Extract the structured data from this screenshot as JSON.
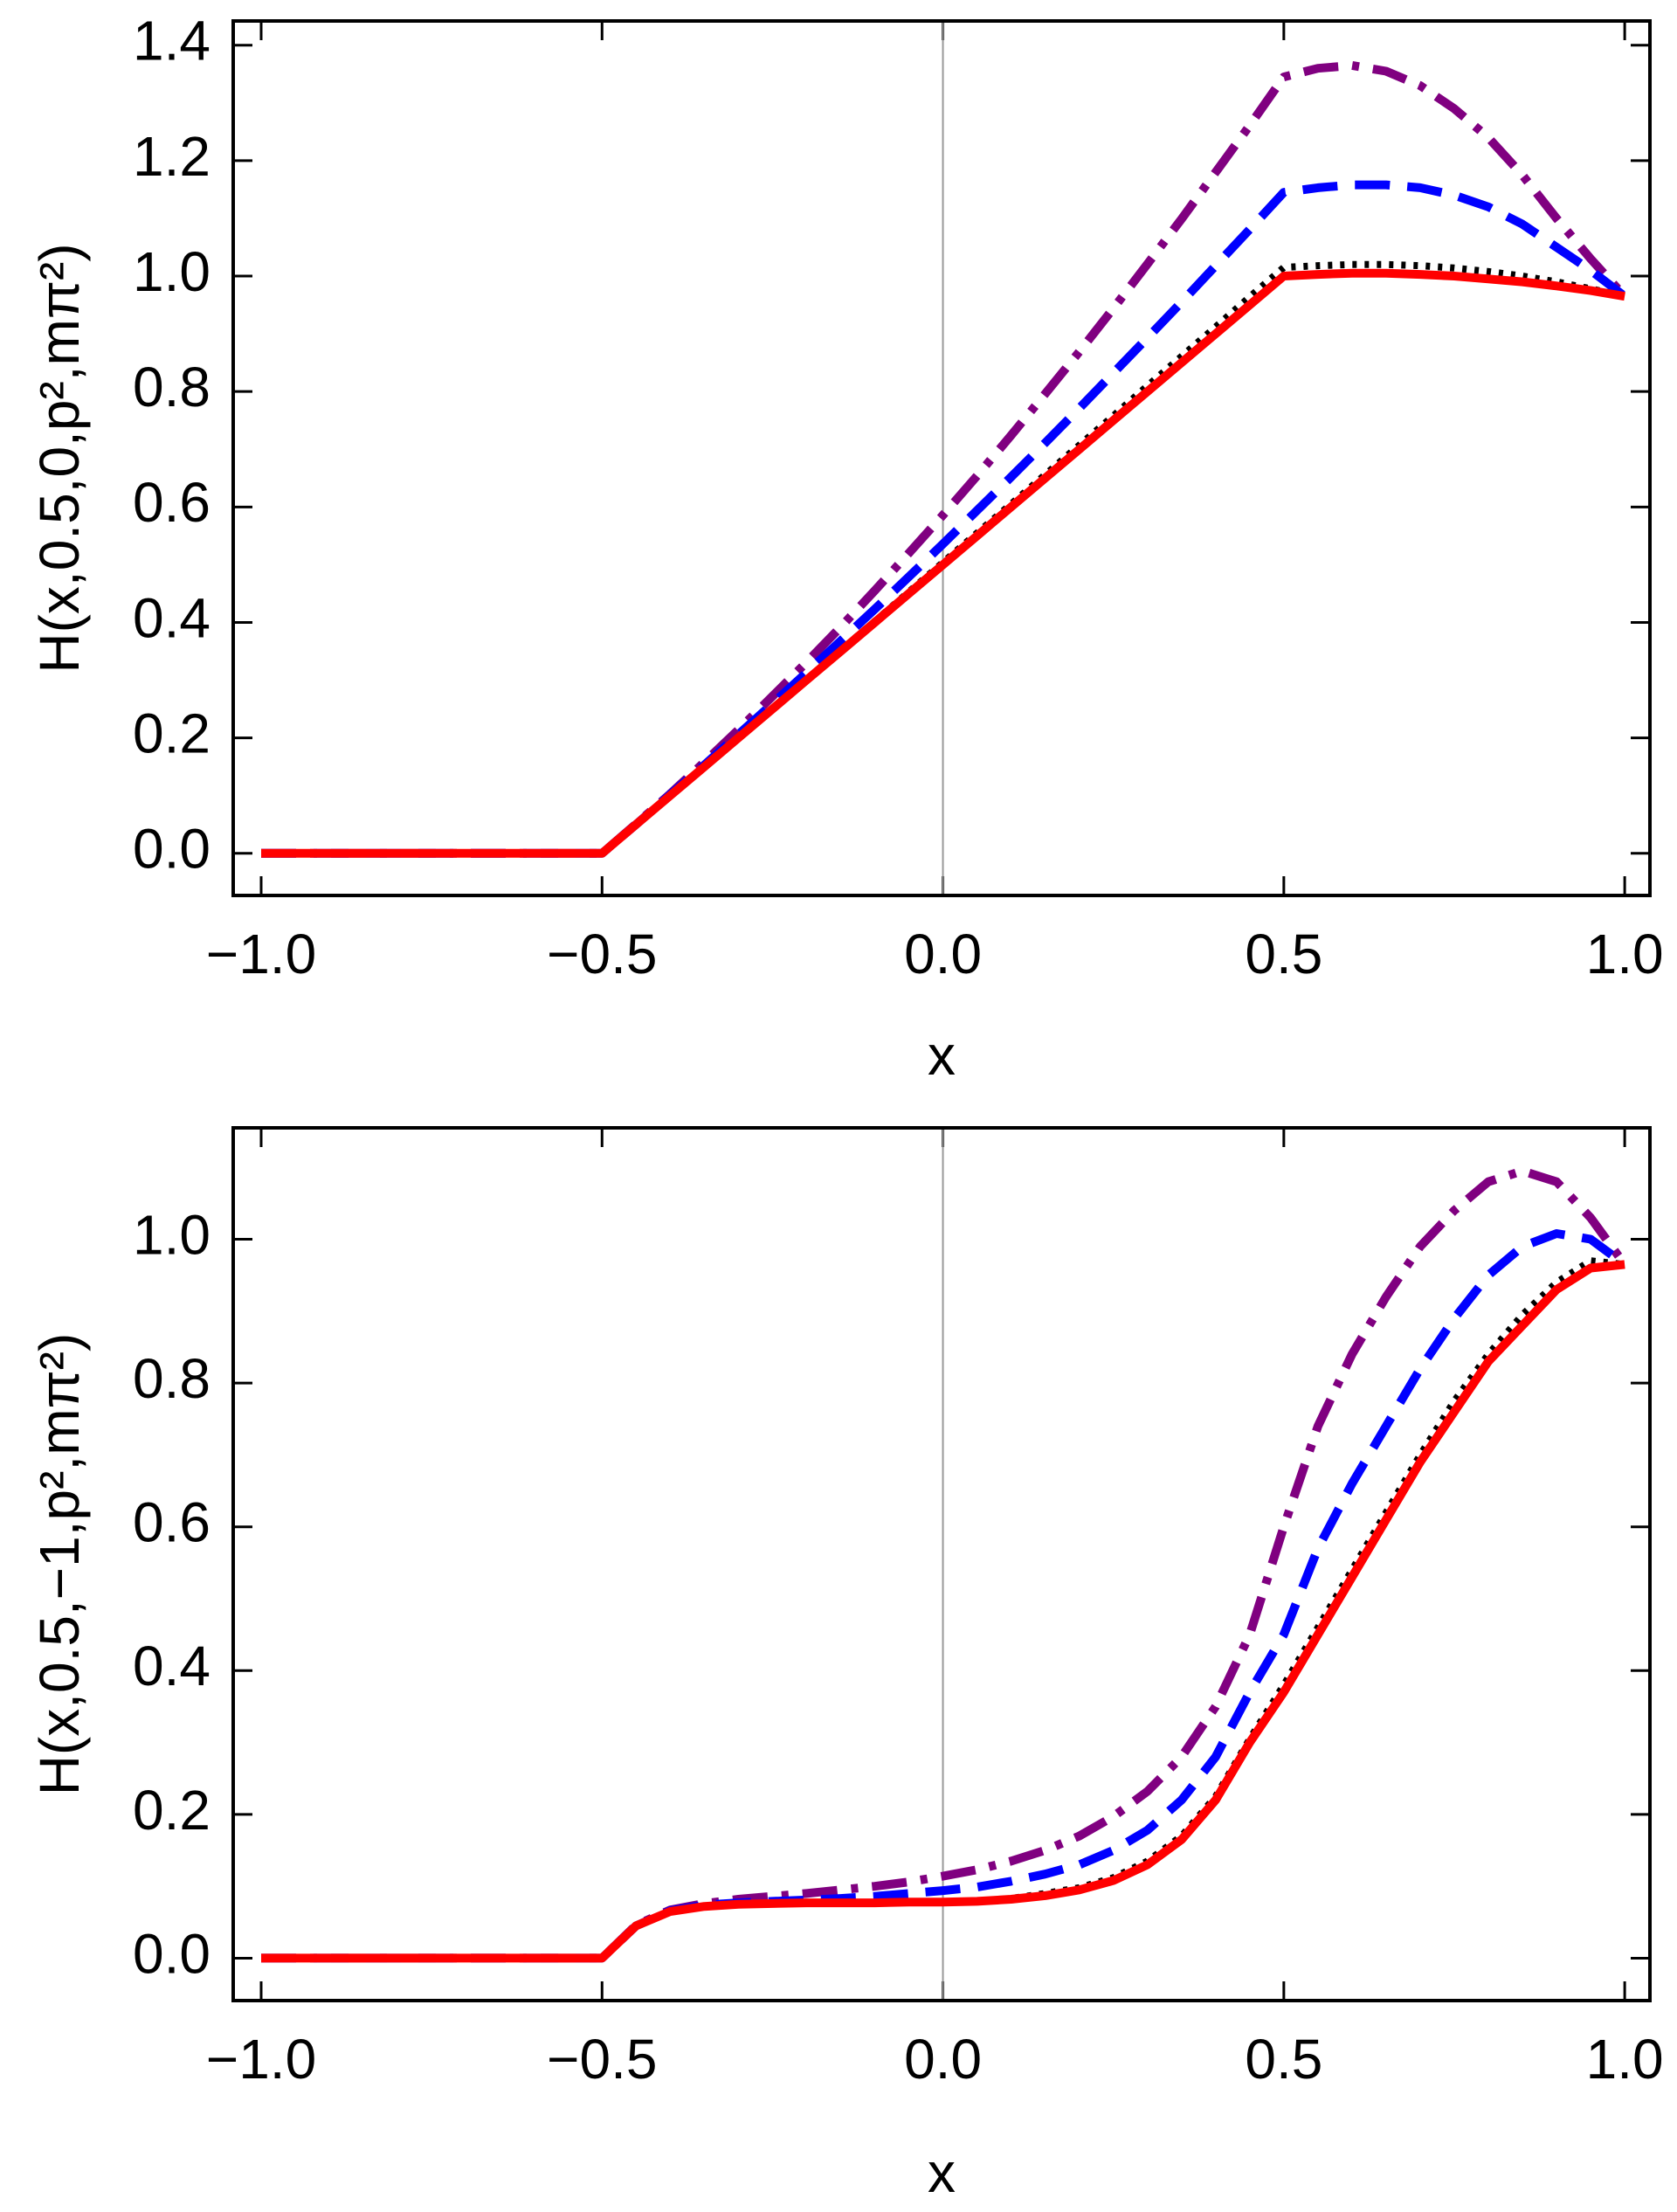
{
  "chart_data": [
    {
      "type": "line",
      "xlabel": "x",
      "ylabel": "H(x,0.5,0,p²,mπ²)",
      "xlim": [
        -1.041,
        1.037
      ],
      "ylim": [
        -0.073,
        1.442
      ],
      "xticks": [
        {
          "value": -1,
          "label": "−1.0"
        },
        {
          "value": -0.5,
          "label": "−0.5"
        },
        {
          "value": 0,
          "label": "0.0"
        },
        0.5,
        {
          "value": 1,
          "label": "1.0"
        }
      ],
      "yticks": [
        {
          "value": 0,
          "label": "0.0"
        },
        0.2,
        0.4,
        0.6,
        0.8,
        {
          "value": 1,
          "label": "1.0"
        },
        1.2,
        1.4
      ],
      "x": [
        -1,
        -0.95,
        -0.9,
        -0.85,
        -0.8,
        -0.75,
        -0.7,
        -0.65,
        -0.6,
        -0.55,
        -0.5,
        -0.45,
        -0.4,
        -0.35,
        -0.3,
        -0.25,
        -0.2,
        -0.15,
        -0.1,
        -0.05,
        0,
        0.05,
        0.1,
        0.15,
        0.2,
        0.25,
        0.3,
        0.35,
        0.4,
        0.45,
        0.5,
        0.55,
        0.6,
        0.65,
        0.7,
        0.75,
        0.8,
        0.85,
        0.9,
        0.95,
        1
      ],
      "series": [
        {
          "color": "#800080",
          "style": "dashdot",
          "values": [
            0,
            0,
            0,
            0,
            0,
            0,
            0,
            0,
            0,
            0,
            0,
            0.051,
            0.103,
            0.158,
            0.214,
            0.272,
            0.331,
            0.392,
            0.455,
            0.52,
            0.586,
            0.654,
            0.724,
            0.796,
            0.869,
            0.944,
            1.021,
            1.099,
            1.18,
            1.261,
            1.345,
            1.36,
            1.365,
            1.355,
            1.33,
            1.29,
            1.24,
            1.175,
            1.1,
            1.03,
            0.965
          ]
        },
        {
          "color": "#0000ff",
          "style": "dashed",
          "values": [
            0,
            0,
            0,
            0,
            0,
            0,
            0,
            0,
            0,
            0,
            0,
            0.05,
            0.102,
            0.153,
            0.206,
            0.259,
            0.313,
            0.368,
            0.423,
            0.479,
            0.536,
            0.594,
            0.652,
            0.711,
            0.771,
            0.832,
            0.893,
            0.955,
            1.018,
            1.081,
            1.145,
            1.153,
            1.158,
            1.158,
            1.153,
            1.14,
            1.12,
            1.09,
            1.05,
            1.01,
            0.965
          ]
        },
        {
          "color": "#000000",
          "style": "dotted",
          "values": [
            0,
            0,
            0,
            0,
            0,
            0,
            0,
            0,
            0,
            0,
            0,
            0.05,
            0.1,
            0.15,
            0.201,
            0.251,
            0.301,
            0.352,
            0.402,
            0.453,
            0.504,
            0.555,
            0.605,
            0.656,
            0.707,
            0.758,
            0.81,
            0.861,
            0.912,
            0.964,
            1.015,
            1.018,
            1.02,
            1.02,
            1.018,
            1.014,
            1.008,
            1,
            0.99,
            0.978,
            0.965
          ]
        },
        {
          "color": "#ff0000",
          "style": "solid",
          "values": [
            0,
            0,
            0,
            0,
            0,
            0,
            0,
            0,
            0,
            0,
            0,
            0.05,
            0.1,
            0.15,
            0.2,
            0.25,
            0.3,
            0.35,
            0.4,
            0.45,
            0.5,
            0.55,
            0.6,
            0.65,
            0.7,
            0.75,
            0.8,
            0.85,
            0.9,
            0.95,
            1,
            1.003,
            1.005,
            1.005,
            1.003,
            1,
            0.995,
            0.99,
            0.983,
            0.975,
            0.965
          ]
        }
      ]
    },
    {
      "type": "line",
      "xlabel": "x",
      "ylabel": "H(x,0.5,−1,p²,mπ²)",
      "xlim": [
        -1.041,
        1.037
      ],
      "ylim": [
        -0.059,
        1.155
      ],
      "xticks": [
        {
          "value": -1,
          "label": "−1.0"
        },
        {
          "value": -0.5,
          "label": "−0.5"
        },
        {
          "value": 0,
          "label": "0.0"
        },
        0.5,
        {
          "value": 1,
          "label": "1.0"
        }
      ],
      "yticks": [
        {
          "value": 0,
          "label": "0.0"
        },
        0.2,
        0.4,
        0.6,
        0.8,
        {
          "value": 1,
          "label": "1.0"
        }
      ],
      "x": [
        -1,
        -0.95,
        -0.9,
        -0.85,
        -0.8,
        -0.75,
        -0.7,
        -0.65,
        -0.6,
        -0.55,
        -0.5,
        -0.45,
        -0.4,
        -0.35,
        -0.3,
        -0.25,
        -0.2,
        -0.15,
        -0.1,
        -0.05,
        0,
        0.05,
        0.1,
        0.15,
        0.2,
        0.25,
        0.3,
        0.35,
        0.4,
        0.45,
        0.5,
        0.55,
        0.6,
        0.65,
        0.7,
        0.75,
        0.8,
        0.85,
        0.9,
        0.95,
        1
      ],
      "series": [
        {
          "color": "#800080",
          "style": "dashdot",
          "values": [
            0,
            0,
            0,
            0,
            0,
            0,
            0,
            0,
            0,
            0,
            0,
            0.046,
            0.067,
            0.076,
            0.082,
            0.086,
            0.09,
            0.095,
            0.1,
            0.106,
            0.114,
            0.123,
            0.135,
            0.15,
            0.17,
            0.197,
            0.232,
            0.28,
            0.35,
            0.45,
            0.6,
            0.74,
            0.84,
            0.92,
            0.99,
            1.04,
            1.08,
            1.095,
            1.08,
            1.03,
            0.965
          ]
        },
        {
          "color": "#0000ff",
          "style": "dashed",
          "values": [
            0,
            0,
            0,
            0,
            0,
            0,
            0,
            0,
            0,
            0,
            0,
            0.045,
            0.066,
            0.074,
            0.077,
            0.079,
            0.081,
            0.083,
            0.086,
            0.09,
            0.094,
            0.099,
            0.107,
            0.117,
            0.13,
            0.15,
            0.178,
            0.22,
            0.28,
            0.37,
            0.45,
            0.57,
            0.66,
            0.74,
            0.82,
            0.89,
            0.95,
            0.99,
            1.008,
            1,
            0.965
          ]
        },
        {
          "color": "#000000",
          "style": "dotted",
          "values": [
            0,
            0,
            0,
            0,
            0,
            0,
            0,
            0,
            0,
            0,
            0,
            0.045,
            0.065,
            0.072,
            0.075,
            0.076,
            0.077,
            0.077,
            0.077,
            0.078,
            0.078,
            0.079,
            0.083,
            0.09,
            0.098,
            0.112,
            0.135,
            0.17,
            0.225,
            0.305,
            0.38,
            0.46,
            0.54,
            0.62,
            0.7,
            0.775,
            0.84,
            0.895,
            0.94,
            0.97,
            0.965
          ]
        },
        {
          "color": "#ff0000",
          "style": "solid",
          "values": [
            0,
            0,
            0,
            0,
            0,
            0,
            0,
            0,
            0,
            0,
            0,
            0.045,
            0.065,
            0.072,
            0.075,
            0.076,
            0.077,
            0.077,
            0.077,
            0.078,
            0.078,
            0.079,
            0.082,
            0.087,
            0.095,
            0.108,
            0.13,
            0.165,
            0.22,
            0.3,
            0.37,
            0.45,
            0.53,
            0.61,
            0.69,
            0.76,
            0.83,
            0.88,
            0.93,
            0.96,
            0.965
          ]
        }
      ]
    }
  ]
}
